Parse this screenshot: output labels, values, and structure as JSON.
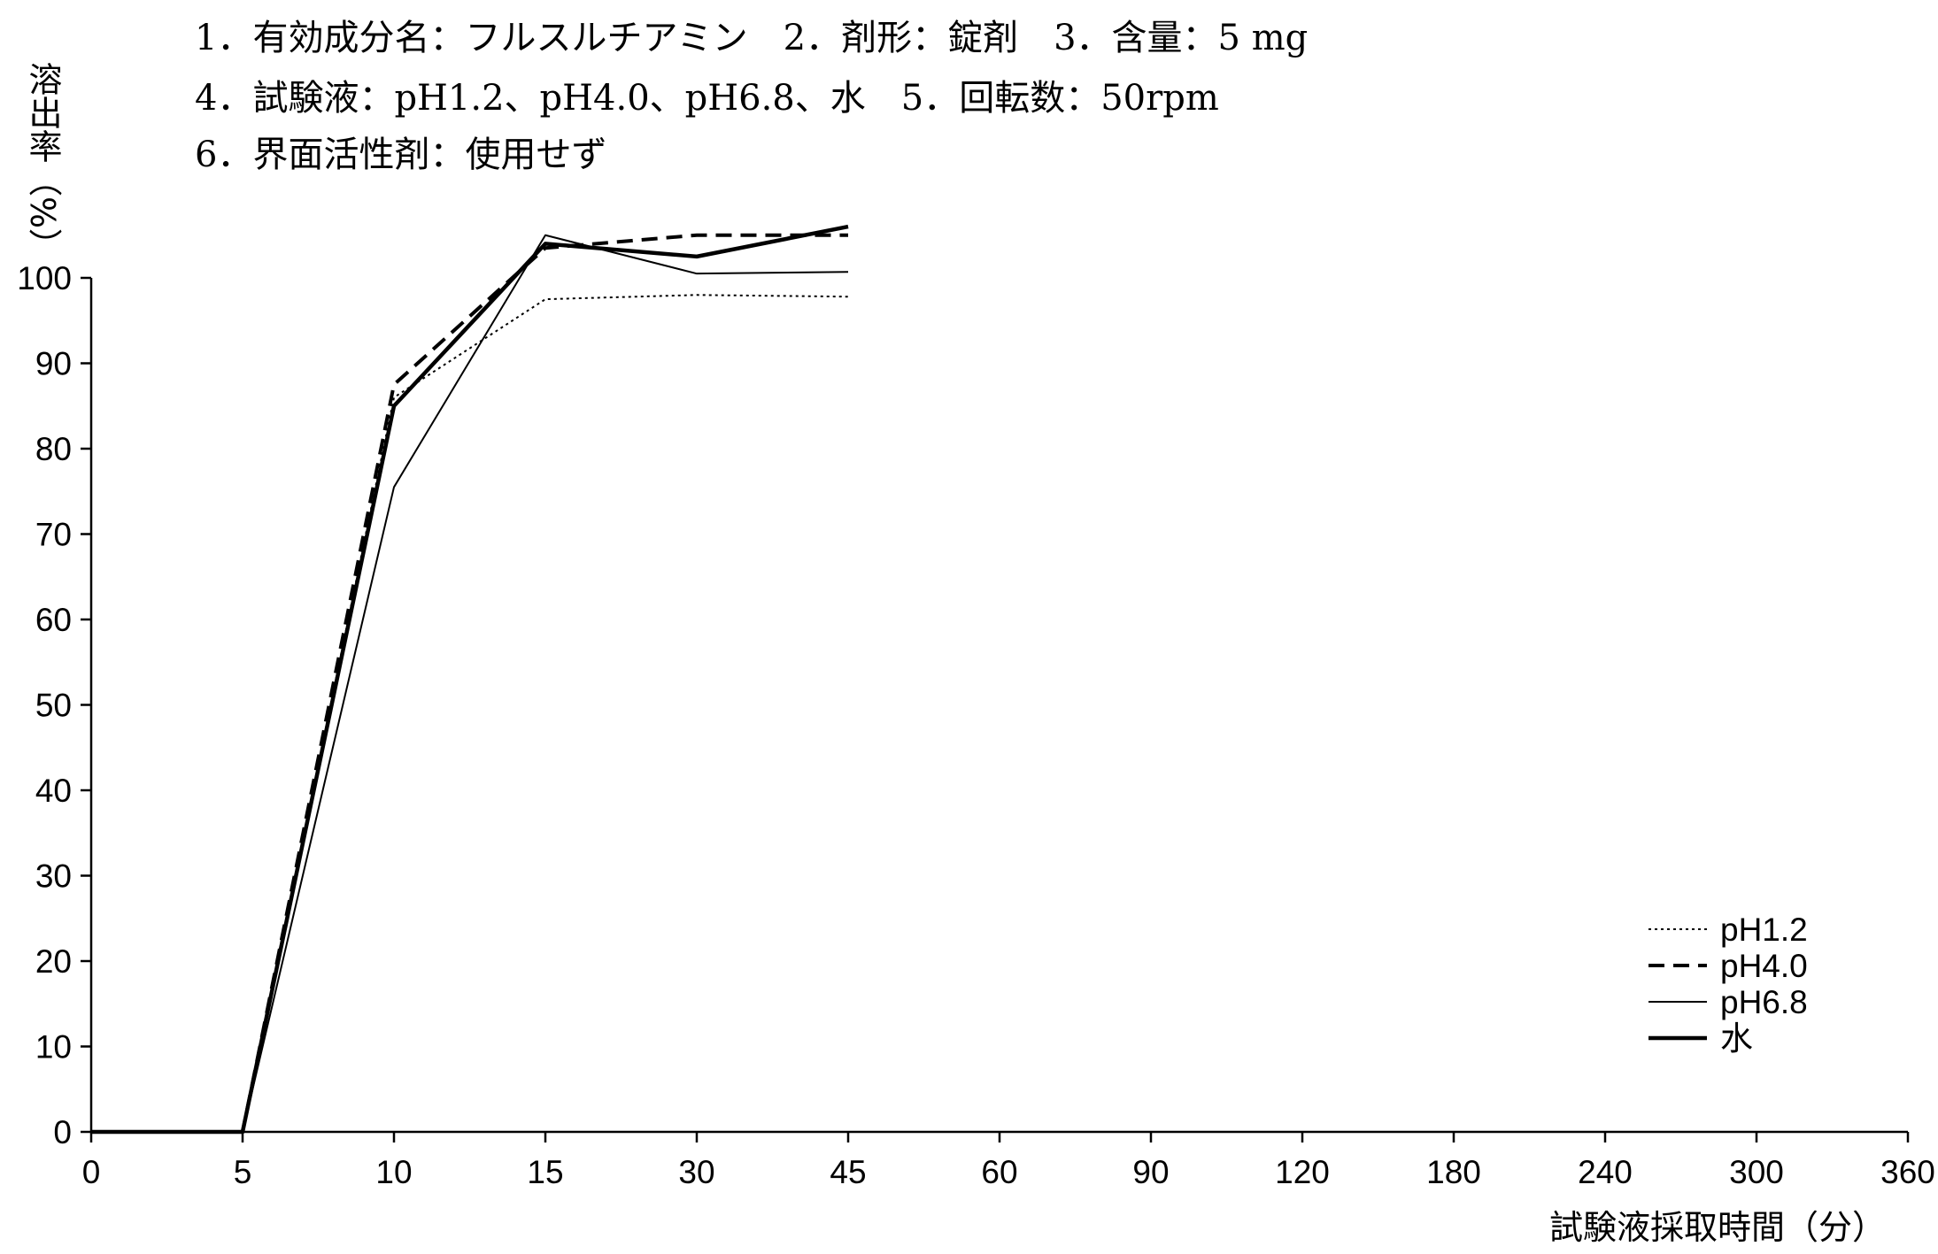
{
  "header": {
    "lines": [
      "1．有効成分名：フルスルチアミン　2．剤形：錠剤　3．含量：5 mg",
      "4．試験液：pH1.2、pH4.0、pH6.8、水　5．回転数：50rpm",
      "6．界面活性剤：使用せず"
    ]
  },
  "chart_data": {
    "type": "line",
    "title": "",
    "ylabel": "溶出率（%）",
    "xlabel": "試験液採取時間（分）",
    "categories": [
      "0",
      "5",
      "10",
      "15",
      "30",
      "45",
      "60",
      "90",
      "120",
      "180",
      "240",
      "300",
      "360"
    ],
    "x": [
      0,
      5,
      10,
      15,
      30,
      45
    ],
    "ylim": [
      0,
      100
    ],
    "yticks": [
      "0",
      "10",
      "20",
      "30",
      "40",
      "50",
      "60",
      "70",
      "80",
      "90",
      "100"
    ],
    "grid": false,
    "legend_position": "bottom-right",
    "series": [
      {
        "name": "pH1.2",
        "style": "dotted",
        "values": [
          0,
          0,
          86,
          97.5,
          98,
          97.8
        ]
      },
      {
        "name": "pH4.0",
        "style": "dashed",
        "values": [
          0,
          0,
          87.5,
          103.5,
          105,
          105
        ]
      },
      {
        "name": "pH6.8",
        "style": "thin",
        "values": [
          0,
          0,
          75.5,
          105,
          100.5,
          100.7
        ]
      },
      {
        "name": "水",
        "style": "solid",
        "values": [
          0,
          0,
          85,
          104,
          102.5,
          106
        ]
      }
    ],
    "line_color": "#000000"
  }
}
